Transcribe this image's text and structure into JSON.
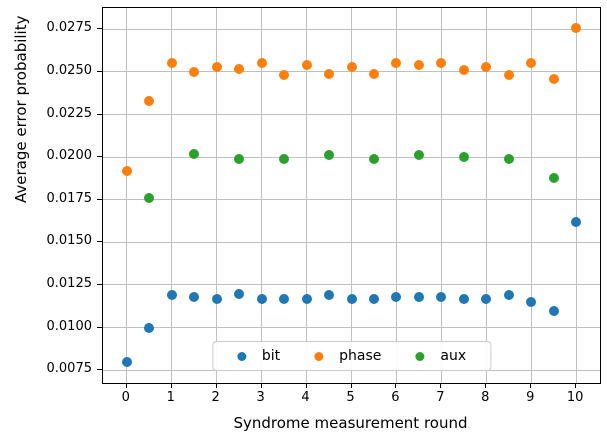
{
  "chart_data": {
    "type": "scatter",
    "title": "",
    "xlabel": "Syndrome measurement round",
    "ylabel": "Average error probability",
    "xlim": [
      -0.53,
      10.53
    ],
    "ylim": [
      0.00675,
      0.02875
    ],
    "x_ticks": [
      0,
      1,
      2,
      3,
      4,
      5,
      6,
      7,
      8,
      9,
      10
    ],
    "x_tick_labels": [
      "0",
      "1",
      "2",
      "3",
      "4",
      "5",
      "6",
      "7",
      "8",
      "9",
      "10"
    ],
    "y_ticks": [
      0.0075,
      0.01,
      0.0125,
      0.015,
      0.0175,
      0.02,
      0.0225,
      0.025,
      0.0275
    ],
    "y_tick_labels": [
      "0.0075",
      "0.0100",
      "0.0125",
      "0.0150",
      "0.0175",
      "0.0200",
      "0.0225",
      "0.0250",
      "0.0275"
    ],
    "grid": true,
    "legend": {
      "position": "lower center",
      "orientation": "horizontal"
    },
    "series": [
      {
        "name": "bit",
        "color": "#1f77b4",
        "x": [
          0,
          0.5,
          1,
          1.5,
          2,
          2.5,
          3,
          3.5,
          4,
          4.5,
          5,
          5.5,
          6,
          6.5,
          7,
          7.5,
          8,
          8.5,
          9,
          9.5,
          10
        ],
        "y": [
          0.008,
          0.01,
          0.0119,
          0.0118,
          0.0117,
          0.012,
          0.0117,
          0.0117,
          0.0117,
          0.0119,
          0.0117,
          0.0117,
          0.0118,
          0.0118,
          0.0118,
          0.0117,
          0.0117,
          0.0119,
          0.0115,
          0.011,
          0.0162
        ]
      },
      {
        "name": "phase",
        "color": "#ff7f0e",
        "x": [
          0,
          0.5,
          1,
          1.5,
          2,
          2.5,
          3,
          3.5,
          4,
          4.5,
          5,
          5.5,
          6,
          6.5,
          7,
          7.5,
          8,
          8.5,
          9,
          9.5,
          10
        ],
        "y": [
          0.0192,
          0.0233,
          0.0255,
          0.025,
          0.0253,
          0.0252,
          0.0255,
          0.0248,
          0.0254,
          0.0249,
          0.0253,
          0.0249,
          0.0255,
          0.0254,
          0.0255,
          0.0251,
          0.0253,
          0.0248,
          0.0255,
          0.0246,
          0.0276
        ]
      },
      {
        "name": "aux",
        "color": "#2ca02c",
        "x": [
          0.5,
          1.5,
          2.5,
          3.5,
          4.5,
          5.5,
          6.5,
          7.5,
          8.5,
          9.5
        ],
        "y": [
          0.0176,
          0.0202,
          0.0199,
          0.0199,
          0.0201,
          0.0199,
          0.0201,
          0.02,
          0.0199,
          0.0188
        ]
      }
    ]
  },
  "colors": {
    "grid": "#c0c0c0",
    "spine": "#000000",
    "background": "#ffffff"
  }
}
